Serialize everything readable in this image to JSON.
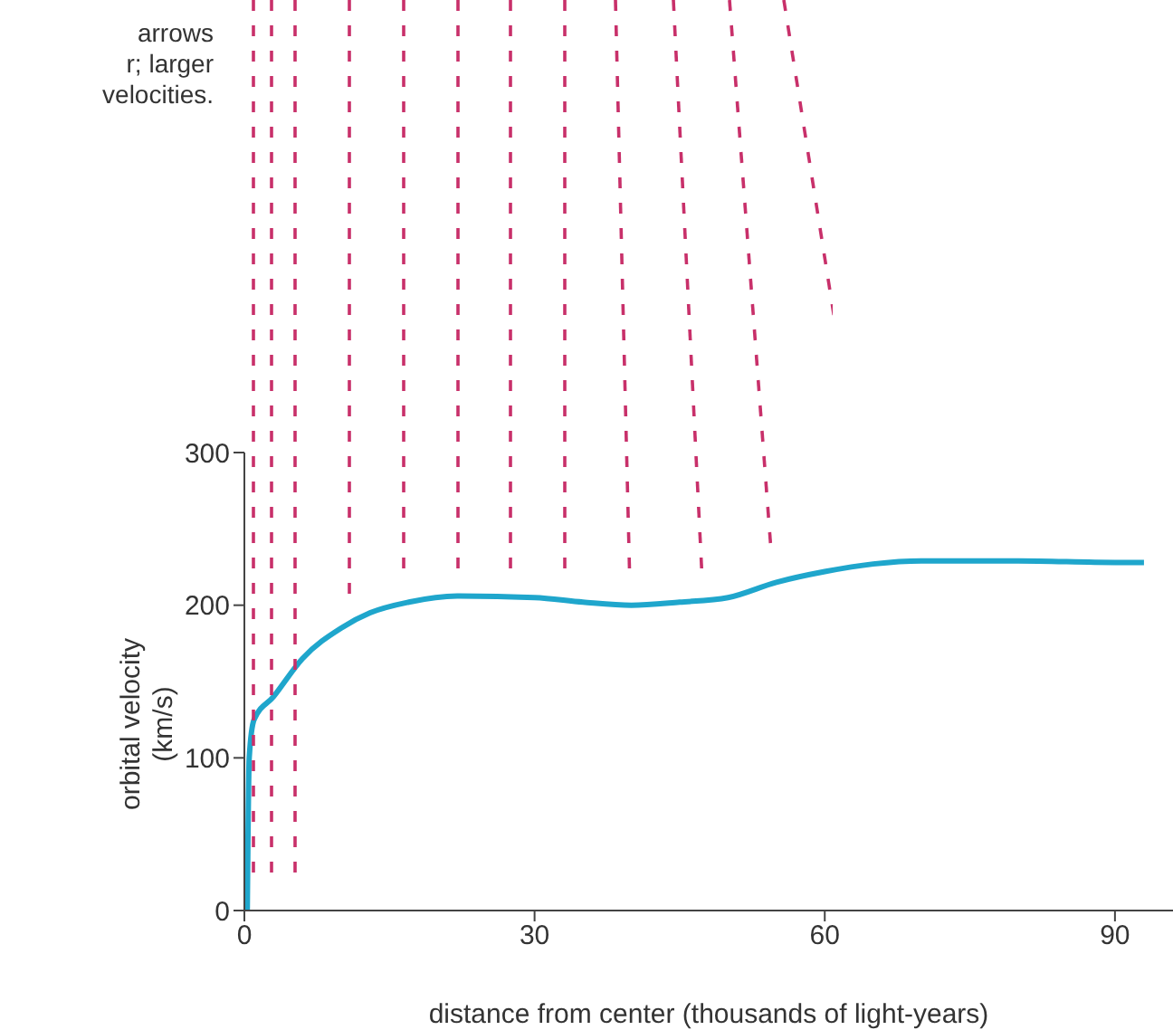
{
  "chart_data": {
    "type": "line",
    "xlabel": "distance from center (thousands of light-years)",
    "ylabel": "orbital velocity\n(km/s)",
    "annotations": [
      "arrows\nr; larger\nvelocities."
    ],
    "x": [
      0.3,
      0.5,
      1,
      3,
      6,
      10,
      13,
      17,
      22,
      30,
      35,
      40,
      45,
      50,
      55,
      60,
      65,
      70,
      80,
      90,
      93
    ],
    "series": [
      {
        "color": "#1fa6cc",
        "values": [
          0,
          100,
          125,
          140,
          165,
          185,
          195,
          202,
          206,
          205,
          202,
          200,
          202,
          205,
          215,
          222,
          227,
          229,
          229,
          228,
          228
        ]
      }
    ],
    "xlim": [
      0,
      96
    ],
    "xticks": [
      0,
      30,
      60,
      90
    ],
    "ylim": [
      0,
      300
    ],
    "yticks": [
      0,
      100,
      200,
      300
    ],
    "grid": false,
    "legend": false,
    "marker": "none",
    "line_style": "solid"
  }
}
